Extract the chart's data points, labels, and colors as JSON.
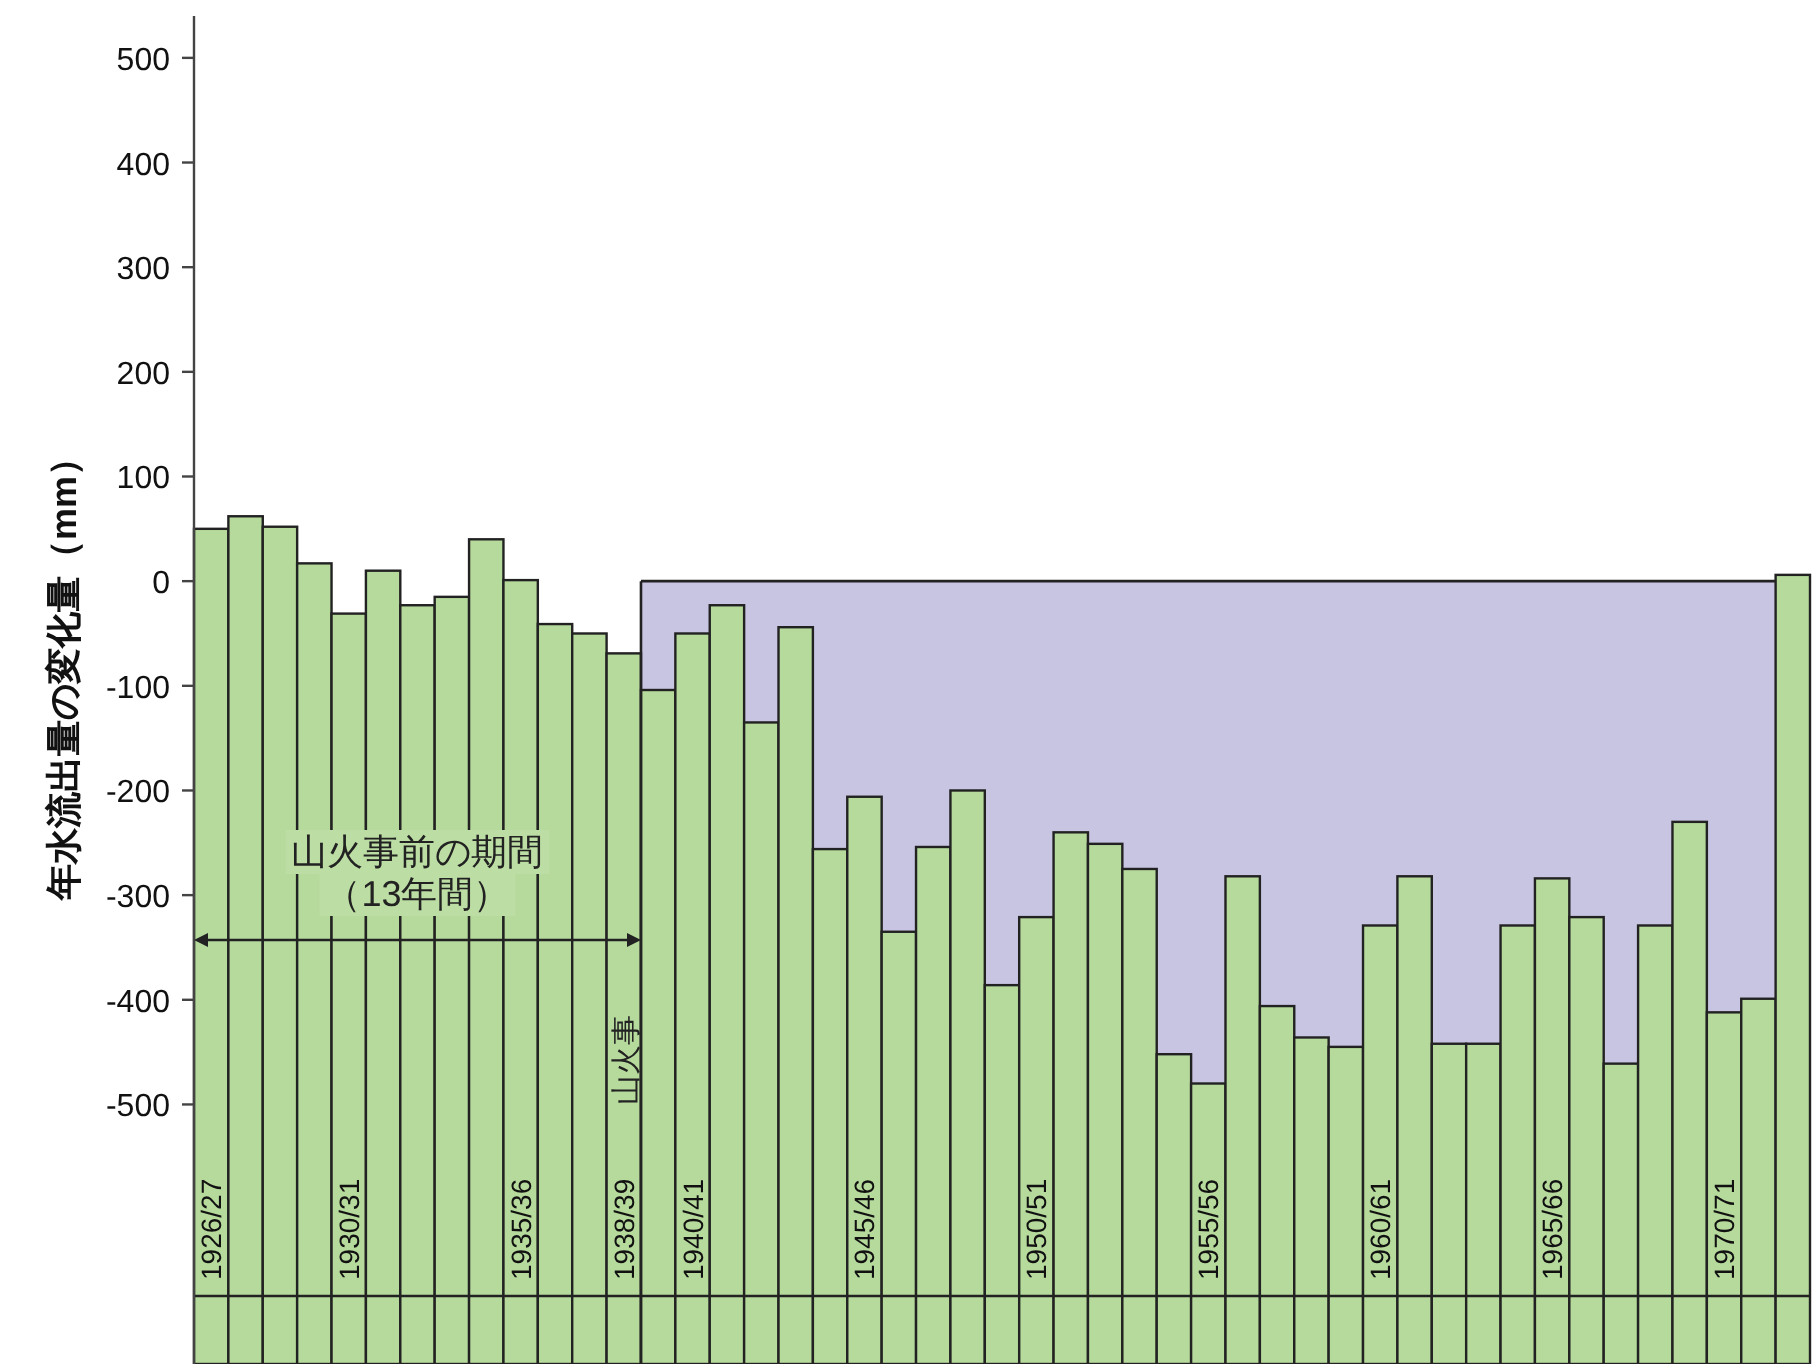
{
  "chart_data": {
    "type": "bar",
    "ylabel": "年水流出量の変化量（mm）",
    "categories": [
      "1926/27",
      null,
      null,
      null,
      "1930/31",
      null,
      null,
      null,
      null,
      "1935/36",
      null,
      null,
      "1938/39",
      null,
      "1940/41",
      null,
      null,
      null,
      null,
      "1945/46",
      null,
      null,
      null,
      null,
      "1950/51",
      null,
      null,
      null,
      null,
      "1955/56",
      null,
      null,
      null,
      null,
      "1960/61",
      null,
      null,
      null,
      null,
      "1965/66",
      null,
      null,
      null,
      null,
      "1970/71",
      null,
      null
    ],
    "base": [
      -748,
      -748,
      -748,
      -748,
      -748,
      -748,
      -748,
      -748,
      -748,
      -748,
      -748,
      -748,
      -748,
      -748,
      -748,
      -748,
      -748,
      -748,
      -748,
      -748,
      -748,
      -748,
      -748,
      -748,
      -748,
      -748,
      -748,
      -748,
      -748,
      -748,
      -748,
      -748,
      -748,
      -748,
      -748,
      -748,
      -748,
      -748,
      -748,
      -748,
      -748,
      -748,
      -748,
      -748,
      -748,
      -748,
      -748
    ],
    "values": [
      798,
      810,
      800,
      765,
      717,
      758,
      725,
      733,
      788,
      749,
      707,
      698,
      679,
      644,
      698,
      725,
      613,
      704,
      492,
      542,
      413,
      494,
      548,
      362,
      427,
      508,
      497,
      473,
      296,
      268,
      466,
      342,
      312,
      303,
      419,
      466,
      306,
      306,
      419,
      464,
      427,
      287,
      419,
      518,
      336,
      349,
      754
    ],
    "color": "#b6da9c",
    "ylim": [
      -748,
      540
    ],
    "yticks": [
      -500,
      -400,
      -300,
      -200,
      -100,
      0,
      100,
      200,
      300,
      400,
      500
    ],
    "ref_lines": [
      {
        "axis": "y",
        "value": -683
      },
      {
        "axis": "x",
        "value": "1938/39",
        "label": "山火事",
        "color": "#222222"
      }
    ],
    "annotations": [
      "山火事前の期間",
      "（13年間）"
    ]
  }
}
